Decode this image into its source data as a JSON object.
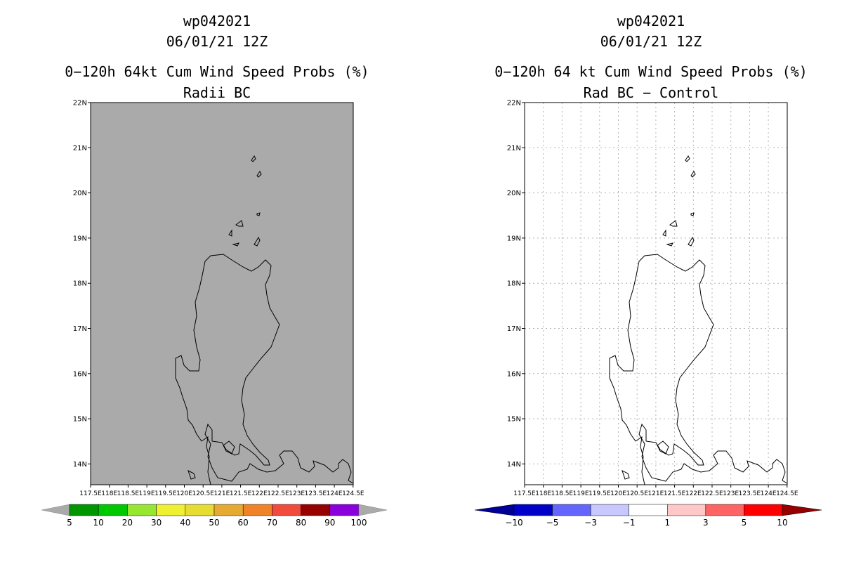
{
  "left_panel": {
    "title_line1": "wp042021",
    "title_line2": "06/01/21 12Z",
    "title_line3": "0−120h 64kt Cum Wind Speed Probs (%)",
    "title_line4": "Radii BC",
    "map_fill_color": "#aaaaaa",
    "colorbar": {
      "colors": [
        "#009600",
        "#00c800",
        "#96e632",
        "#f0f032",
        "#e6dc32",
        "#e6aa32",
        "#f08228",
        "#f04b3c",
        "#960000",
        "#8c00dc"
      ],
      "end_arrow_color": "#aaaaaa",
      "labels": [
        "5",
        "10",
        "20",
        "30",
        "40",
        "50",
        "60",
        "70",
        "80",
        "90",
        "100"
      ]
    }
  },
  "right_panel": {
    "title_line1": "wp042021",
    "title_line2": "06/01/21 12Z",
    "title_line3": "0−120h 64 kt Cum Wind Speed Probs (%)",
    "title_line4": "Rad BC − Control",
    "map_fill_color": "#ffffff",
    "gridlines": true,
    "colorbar": {
      "colors": [
        "#0000c8",
        "#6464ff",
        "#c8c8ff",
        "#ffffff",
        "#ffc8c8",
        "#ff6464",
        "#ff0000"
      ],
      "left_arrow_color": "#000096",
      "right_arrow_color": "#960000",
      "labels": [
        "−10",
        "−5",
        "−3",
        "−1",
        "1",
        "3",
        "5",
        "10"
      ]
    }
  },
  "axes": {
    "lat_labels": [
      "22N",
      "21N",
      "20N",
      "19N",
      "18N",
      "17N",
      "16N",
      "15N",
      "14N"
    ],
    "lon_labels": [
      "117.5E",
      "118E",
      "118.5E",
      "119E",
      "119.5E",
      "120E",
      "120.5E",
      "121E",
      "121.5E",
      "122E",
      "122.5E",
      "123E",
      "123.5E",
      "124E",
      "124.5E"
    ]
  }
}
